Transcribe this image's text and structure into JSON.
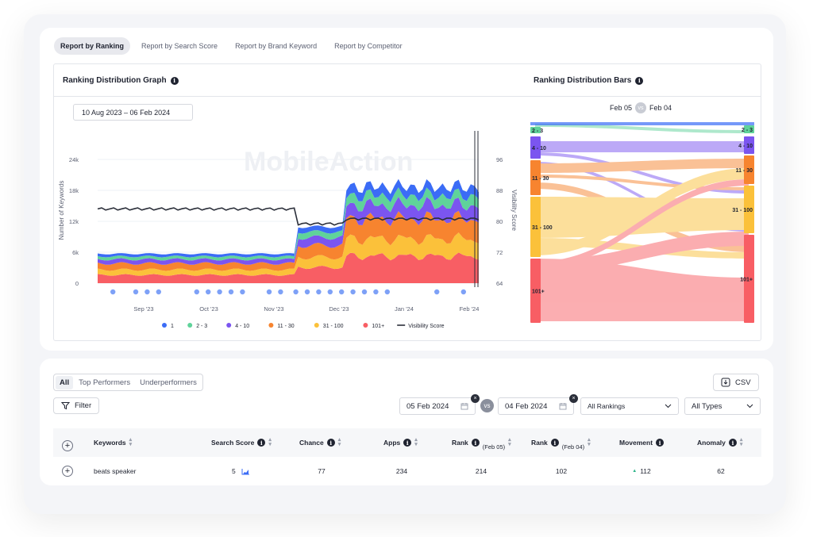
{
  "tabs": [
    {
      "label": "Report by Ranking",
      "active": true
    },
    {
      "label": "Report by Search Score",
      "active": false
    },
    {
      "label": "Report by Brand Keyword",
      "active": false
    },
    {
      "label": "Report by Competitor",
      "active": false
    }
  ],
  "graph": {
    "title": "Ranking Distribution Graph",
    "date_range": "10 Aug 2023 – 06 Feb 2024",
    "y_left_label": "Number of Keywords",
    "y_right_label": "Visibility Score",
    "y_left_ticks": [
      "24k",
      "18k",
      "12k",
      "6k",
      "0"
    ],
    "y_right_ticks": [
      "96",
      "88",
      "80",
      "72",
      "64"
    ],
    "x_ticks": [
      "Sep '23",
      "Oct '23",
      "Nov '23",
      "Dec '23",
      "Jan '24",
      "Feb '24"
    ],
    "watermark": "MobileAction",
    "legend": [
      {
        "label": "1",
        "color": "#3b6cf6"
      },
      {
        "label": "2 - 3",
        "color": "#5fd39a"
      },
      {
        "label": "4 - 10",
        "color": "#7b55f0"
      },
      {
        "label": "11 - 30",
        "color": "#f7842f"
      },
      {
        "label": "31 - 100",
        "color": "#fbc13a"
      },
      {
        "label": "101+",
        "color": "#f85e64"
      },
      {
        "label": "Visibility Score",
        "color": "#2b2f3a"
      }
    ]
  },
  "bars": {
    "title": "Ranking Distribution Bars",
    "date_a": "Feb 05",
    "vs": "vs",
    "date_b": "Feb 04",
    "left_labels": [
      "2 - 3",
      "4 - 10",
      "11 - 30",
      "31 - 100",
      "101+"
    ],
    "right_labels": [
      "2 - 3",
      "4 - 10",
      "11 - 30",
      "31 - 100",
      "101+"
    ]
  },
  "filters": {
    "tabs": [
      {
        "label": "All",
        "active": true
      },
      {
        "label": "Top Performers",
        "active": false
      },
      {
        "label": "Underperformers",
        "active": false
      }
    ],
    "filter_label": "Filter",
    "csv_label": "CSV",
    "date_a": "05 Feb 2024",
    "vs": "vs",
    "date_b": "04 Feb 2024",
    "rankings": "All Rankings",
    "types": "All Types"
  },
  "table": {
    "headers": [
      "Keywords",
      "Search Score",
      "Chance",
      "Apps",
      "Rank",
      "Rank",
      "Movement",
      "Anomaly"
    ],
    "rank_a_sub": "(Feb 05)",
    "rank_b_sub": "(Feb 04)",
    "rows": [
      {
        "keyword": "beats speaker",
        "search_score": "5",
        "chance": "77",
        "apps": "234",
        "rank_a": "214",
        "rank_b": "102",
        "movement": "112",
        "anomaly": "62"
      }
    ]
  }
}
